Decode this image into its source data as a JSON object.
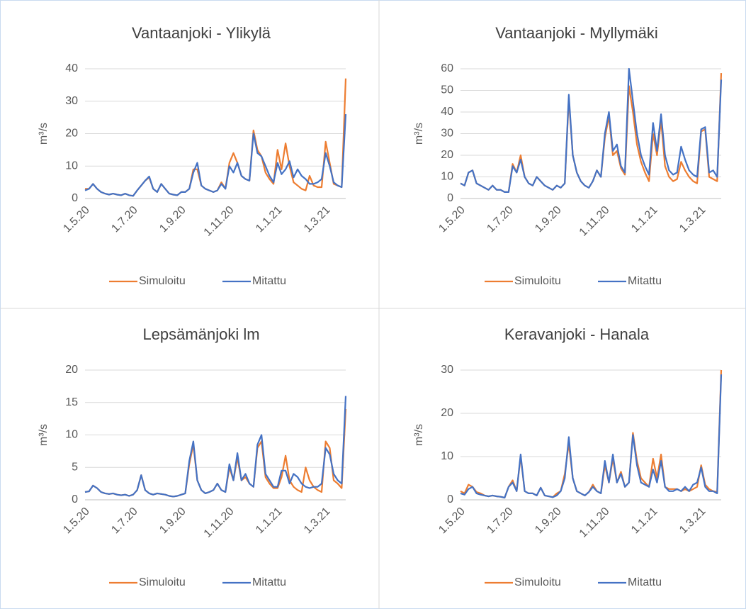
{
  "chart_data": [
    {
      "type": "line",
      "title": "Vantaanjoki - Ylikylä",
      "ylabel": "m³/s",
      "categories": [
        "1.5.20",
        null,
        null,
        null,
        null,
        null,
        null,
        null,
        null,
        null,
        null,
        null,
        "1.7.20",
        null,
        null,
        null,
        null,
        null,
        null,
        null,
        null,
        null,
        null,
        null,
        "1.9.20",
        null,
        null,
        null,
        null,
        null,
        null,
        null,
        null,
        null,
        null,
        null,
        "1.11.20",
        null,
        null,
        null,
        null,
        null,
        null,
        null,
        null,
        null,
        null,
        null,
        "1.1.21",
        null,
        null,
        null,
        null,
        null,
        null,
        null,
        null,
        null,
        null,
        null,
        "1.3.21",
        null,
        null,
        null,
        null,
        null
      ],
      "series": [
        {
          "name": "Simuloitu",
          "color": "#ed7d31",
          "values": [
            3,
            3,
            4.5,
            3,
            2,
            1.5,
            1.2,
            1.5,
            1.2,
            1,
            1.5,
            1,
            0.8,
            2.5,
            4,
            5.5,
            6.5,
            3,
            2,
            4.5,
            3,
            1.5,
            1.2,
            1,
            2,
            2,
            3,
            9,
            9,
            4,
            3,
            2.5,
            2,
            2.5,
            5,
            3,
            11,
            14,
            11,
            7,
            6,
            5.5,
            21,
            15,
            13,
            8,
            6,
            4.5,
            15,
            9,
            17,
            10,
            5,
            4,
            3,
            2.5,
            7,
            4,
            3.5,
            3.5,
            17.5,
            11,
            4.5,
            4,
            3.5,
            37
          ]
        },
        {
          "name": "Mitattu",
          "color": "#4472c4",
          "values": [
            2.5,
            3,
            4.5,
            3,
            2,
            1.5,
            1.2,
            1.5,
            1.2,
            1,
            1.5,
            1,
            0.8,
            2.5,
            4,
            5.5,
            6.8,
            3,
            2,
            4.5,
            3,
            1.5,
            1.2,
            1,
            2,
            2,
            3,
            8,
            11,
            4,
            3,
            2.5,
            2,
            2.5,
            4.5,
            3,
            10,
            8,
            11,
            7,
            6,
            5.5,
            20,
            14,
            13,
            10,
            7,
            5,
            11,
            7.5,
            9,
            11.5,
            6.5,
            9,
            7,
            6,
            4.5,
            4.5,
            5,
            6,
            14,
            10,
            5,
            4,
            3.5,
            26
          ]
        }
      ],
      "ylim": [
        0,
        40
      ],
      "yticks": [
        0,
        10,
        20,
        30,
        40
      ],
      "grid": true,
      "legend": "bottom"
    },
    {
      "type": "line",
      "title": "Vantaanjoki - Myllymäki",
      "ylabel": "m³/s",
      "categories": [
        "1.5.20",
        null,
        null,
        null,
        null,
        null,
        null,
        null,
        null,
        null,
        null,
        null,
        "1.7.20",
        null,
        null,
        null,
        null,
        null,
        null,
        null,
        null,
        null,
        null,
        null,
        "1.9.20",
        null,
        null,
        null,
        null,
        null,
        null,
        null,
        null,
        null,
        null,
        null,
        "1.11.20",
        null,
        null,
        null,
        null,
        null,
        null,
        null,
        null,
        null,
        null,
        null,
        "1.1.21",
        null,
        null,
        null,
        null,
        null,
        null,
        null,
        null,
        null,
        null,
        null,
        "1.3.21",
        null,
        null,
        null,
        null,
        null
      ],
      "series": [
        {
          "name": "Simuloitu",
          "color": "#ed7d31",
          "values": [
            7,
            6,
            12,
            13,
            7,
            6,
            5,
            4,
            6,
            4,
            4,
            3,
            3,
            16,
            12,
            20,
            10,
            7,
            6,
            10,
            8,
            6,
            5,
            4,
            6,
            5,
            7,
            46,
            20,
            12,
            8,
            6,
            5,
            8,
            13,
            10,
            28,
            38,
            20,
            22,
            14,
            11,
            52,
            40,
            25,
            17,
            12,
            8,
            30,
            20,
            36,
            15,
            10,
            8,
            9,
            17,
            13,
            10,
            8,
            7,
            31,
            32,
            10,
            9,
            8,
            58
          ]
        },
        {
          "name": "Mitattu",
          "color": "#4472c4",
          "values": [
            7,
            6,
            12,
            13,
            7,
            6,
            5,
            4,
            6,
            4,
            4,
            3,
            3,
            15,
            12,
            18,
            10,
            7,
            6,
            10,
            8,
            6,
            5,
            4,
            6,
            5,
            7,
            48,
            20,
            12,
            8,
            6,
            5,
            8,
            13,
            10,
            30,
            40,
            22,
            25,
            15,
            12,
            60,
            45,
            30,
            20,
            15,
            11,
            35,
            22,
            39,
            20,
            13,
            11,
            12,
            24,
            18,
            13,
            11,
            10,
            32,
            33,
            12,
            13,
            10,
            55
          ]
        }
      ],
      "ylim": [
        0,
        60
      ],
      "yticks": [
        0,
        10,
        20,
        30,
        40,
        50,
        60
      ],
      "grid": true,
      "legend": "bottom"
    },
    {
      "type": "line",
      "title": "Lepsämänjoki lm",
      "ylabel": "m³/s",
      "categories": [
        "1.5.20",
        null,
        null,
        null,
        null,
        null,
        null,
        null,
        null,
        null,
        null,
        null,
        "1.7.20",
        null,
        null,
        null,
        null,
        null,
        null,
        null,
        null,
        null,
        null,
        null,
        "1.9.20",
        null,
        null,
        null,
        null,
        null,
        null,
        null,
        null,
        null,
        null,
        null,
        "1.11.20",
        null,
        null,
        null,
        null,
        null,
        null,
        null,
        null,
        null,
        null,
        null,
        "1.1.21",
        null,
        null,
        null,
        null,
        null,
        null,
        null,
        null,
        null,
        null,
        null,
        "1.3.21",
        null,
        null,
        null,
        null,
        null
      ],
      "series": [
        {
          "name": "Simuloitu",
          "color": "#ed7d31",
          "values": [
            1.2,
            1.3,
            2.2,
            1.8,
            1.2,
            1,
            0.9,
            1,
            0.8,
            0.7,
            0.8,
            0.6,
            0.8,
            1.5,
            3.8,
            1.5,
            1,
            0.8,
            1,
            0.9,
            0.8,
            0.6,
            0.5,
            0.6,
            0.8,
            1,
            5.5,
            8.5,
            3,
            1.5,
            1,
            1.2,
            1.5,
            2.5,
            1.5,
            1.2,
            5,
            3,
            6.5,
            3,
            3.5,
            2.5,
            2,
            8,
            9,
            3.5,
            2.5,
            1.8,
            1.8,
            3.5,
            6.8,
            3,
            2,
            1.5,
            1.2,
            5,
            3,
            2,
            1.5,
            1.2,
            9,
            8,
            3,
            2.5,
            1.8,
            14
          ]
        },
        {
          "name": "Mitattu",
          "color": "#4472c4",
          "values": [
            1.2,
            1.3,
            2.2,
            1.8,
            1.2,
            1,
            0.9,
            1,
            0.8,
            0.7,
            0.8,
            0.6,
            0.8,
            1.5,
            3.8,
            1.5,
            1,
            0.8,
            1,
            0.9,
            0.8,
            0.6,
            0.5,
            0.6,
            0.8,
            1,
            6,
            9,
            3,
            1.5,
            1,
            1.2,
            1.5,
            2.5,
            1.5,
            1.2,
            5.5,
            3,
            7.2,
            3,
            4,
            2.5,
            2,
            8.5,
            10,
            4,
            3,
            2,
            2,
            4.5,
            4.5,
            2.5,
            4,
            3.5,
            2.5,
            2,
            1.8,
            2,
            2,
            2.5,
            8,
            7,
            4,
            3,
            2.5,
            16
          ]
        }
      ],
      "ylim": [
        0,
        20
      ],
      "yticks": [
        0,
        5,
        10,
        15,
        20
      ],
      "grid": true,
      "legend": "bottom"
    },
    {
      "type": "line",
      "title": "Keravanjoki - Hanala",
      "ylabel": "m³/s",
      "categories": [
        "1.5.20",
        null,
        null,
        null,
        null,
        null,
        null,
        null,
        null,
        null,
        null,
        null,
        "1.7.20",
        null,
        null,
        null,
        null,
        null,
        null,
        null,
        null,
        null,
        null,
        null,
        "1.9.20",
        null,
        null,
        null,
        null,
        null,
        null,
        null,
        null,
        null,
        null,
        null,
        "1.11.20",
        null,
        null,
        null,
        null,
        null,
        null,
        null,
        null,
        null,
        null,
        null,
        "1.1.21",
        null,
        null,
        null,
        null,
        null,
        null,
        null,
        null,
        null,
        null,
        null,
        "1.3.21",
        null,
        null,
        null,
        null,
        null
      ],
      "series": [
        {
          "name": "Simuloitu",
          "color": "#ed7d31",
          "values": [
            2,
            1.5,
            3.5,
            3,
            1.8,
            1.5,
            1,
            0.8,
            1,
            0.8,
            0.7,
            0.5,
            3,
            4.5,
            2,
            10,
            2,
            1.5,
            1.5,
            1,
            2.8,
            1,
            0.8,
            0.6,
            1.5,
            2,
            6,
            13,
            5,
            2,
            1.5,
            1,
            1.8,
            3.5,
            2,
            1.5,
            8,
            4,
            9.5,
            4,
            6.5,
            3,
            4,
            15.5,
            9,
            5,
            4,
            3,
            9.5,
            5,
            10.5,
            3,
            2.5,
            2.5,
            2.5,
            2,
            2.5,
            2,
            2.5,
            3,
            8,
            3.5,
            2.5,
            2,
            1.8,
            30
          ]
        },
        {
          "name": "Mitattu",
          "color": "#4472c4",
          "values": [
            1.5,
            1.2,
            2.5,
            3,
            1.5,
            1.2,
            1,
            0.8,
            1,
            0.8,
            0.7,
            0.5,
            3,
            4,
            2,
            10.5,
            2,
            1.5,
            1.5,
            1,
            2.8,
            1,
            0.8,
            0.6,
            1,
            2,
            5,
            14.5,
            5,
            2,
            1.5,
            1,
            1.8,
            3,
            2,
            1.5,
            9,
            4,
            10.5,
            4,
            6,
            3,
            4,
            15,
            8,
            4,
            3.5,
            3,
            7,
            4,
            9,
            3,
            2,
            2,
            2.5,
            2,
            3,
            2,
            3.5,
            4,
            7.5,
            3,
            2,
            2,
            1.5,
            29
          ]
        }
      ],
      "ylim": [
        0,
        30
      ],
      "yticks": [
        0,
        10,
        20,
        30
      ],
      "grid": true,
      "legend": "bottom"
    }
  ]
}
